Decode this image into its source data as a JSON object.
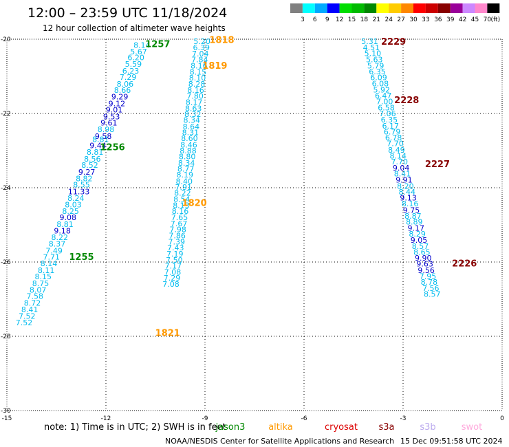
{
  "header": {
    "title": "12:00 – 23:59 UTC 11/18/2024",
    "subtitle": "12 hour collection of altimeter wave heights"
  },
  "colorbar": {
    "labels": [
      "3",
      "6",
      "9",
      "12",
      "15",
      "18",
      "21",
      "24",
      "27",
      "30",
      "33",
      "36",
      "39",
      "42",
      "45",
      "70",
      "(ft)"
    ],
    "colors": [
      "#808080",
      "#00ffff",
      "#00aaff",
      "#0000ff",
      "#00dd00",
      "#00bb00",
      "#008800",
      "#ffff00",
      "#ffcc00",
      "#ff8800",
      "#ff0000",
      "#cc0000",
      "#880000",
      "#990099",
      "#cc88ff",
      "#ff88cc",
      "#000000"
    ]
  },
  "footer": {
    "note": "note: 1) Time is in UTC; 2) SWH is in feet",
    "satellites": [
      {
        "name": "jason3",
        "color": "#008800"
      },
      {
        "name": "altika",
        "color": "#ff9900"
      },
      {
        "name": "cryosat",
        "color": "#dd0000"
      },
      {
        "name": "s3a",
        "color": "#880000"
      },
      {
        "name": "s3b",
        "color": "#bbaaee"
      },
      {
        "name": "swot",
        "color": "#ffaadd"
      }
    ],
    "credit": "NOAA/NESDIS Center for Satellite Applications and Research",
    "timestamp": "15 Dec 09:51:58 UTC 2024"
  },
  "chart_data": {
    "type": "scatter",
    "title": "12:00 – 23:59 UTC 11/18/2024",
    "subtitle": "12 hour collection of altimeter wave heights",
    "xlabel": "",
    "ylabel": "",
    "xlim": [
      -15,
      0
    ],
    "ylim": [
      -30,
      -20
    ],
    "xticks": [
      -15,
      -12,
      -9,
      -6,
      -3,
      0
    ],
    "yticks": [
      -20,
      -22,
      -24,
      -26,
      -28,
      -30
    ],
    "xtick_labels": [
      "-15",
      "-12",
      "-9",
      "-6",
      "-3",
      "0"
    ],
    "ytick_labels": [
      "-20",
      "-22",
      "-24",
      "-26",
      "-28",
      "-30"
    ],
    "grid": true,
    "value_colors": {
      "0-9": "#00bbee",
      "9-12": "#0000cc",
      "12-15": "#00bb00"
    },
    "tracks": [
      {
        "name": "jason3",
        "color": "#008800",
        "points": [
          {
            "lon": -10.91,
            "lat": -20.16,
            "v": 8.14
          },
          {
            "lon": -11.01,
            "lat": -20.33,
            "v": 5.67
          },
          {
            "lon": -11.09,
            "lat": -20.49,
            "v": 6.2
          },
          {
            "lon": -11.17,
            "lat": -20.67,
            "v": 5.59
          },
          {
            "lon": -11.25,
            "lat": -20.85,
            "v": 6.23
          },
          {
            "lon": -11.33,
            "lat": -21.02,
            "v": 7.29
          },
          {
            "lon": -11.42,
            "lat": -21.2,
            "v": 8.06
          },
          {
            "lon": -11.5,
            "lat": -21.37,
            "v": 8.66
          },
          {
            "lon": -11.58,
            "lat": -21.55,
            "v": 9.29
          },
          {
            "lon": -11.67,
            "lat": -21.73,
            "v": 9.12
          },
          {
            "lon": -11.75,
            "lat": -21.9,
            "v": 9.01
          },
          {
            "lon": -11.83,
            "lat": -22.08,
            "v": 9.53
          },
          {
            "lon": -11.91,
            "lat": -22.25,
            "v": 9.61
          },
          {
            "lon": -12.0,
            "lat": -22.43,
            "v": 8.98
          },
          {
            "lon": -12.08,
            "lat": -22.61,
            "v": 9.58
          },
          {
            "lon": -12.16,
            "lat": -22.69,
            "v": 8.81
          },
          {
            "lon": -12.24,
            "lat": -22.86,
            "v": 9.44
          },
          {
            "lon": -12.33,
            "lat": -23.04,
            "v": 8.81
          },
          {
            "lon": -12.41,
            "lat": -23.22,
            "v": 8.56
          },
          {
            "lon": -12.49,
            "lat": -23.39,
            "v": 8.52
          },
          {
            "lon": -12.58,
            "lat": -23.57,
            "v": 9.27
          },
          {
            "lon": -12.66,
            "lat": -23.75,
            "v": 8.82
          },
          {
            "lon": -12.74,
            "lat": -23.92,
            "v": 8.55
          },
          {
            "lon": -12.82,
            "lat": -24.1,
            "v": 11.33
          },
          {
            "lon": -12.91,
            "lat": -24.28,
            "v": 8.24
          },
          {
            "lon": -12.99,
            "lat": -24.45,
            "v": 8.03
          },
          {
            "lon": -13.07,
            "lat": -24.63,
            "v": 8.25
          },
          {
            "lon": -13.15,
            "lat": -24.8,
            "v": 9.08
          },
          {
            "lon": -13.24,
            "lat": -24.98,
            "v": 8.81
          },
          {
            "lon": -13.32,
            "lat": -25.16,
            "v": 9.18
          },
          {
            "lon": -13.4,
            "lat": -25.33,
            "v": 8.22
          },
          {
            "lon": -13.48,
            "lat": -25.51,
            "v": 8.37
          },
          {
            "lon": -13.57,
            "lat": -25.69,
            "v": 7.49
          },
          {
            "lon": -13.65,
            "lat": -25.86,
            "v": 7.71
          },
          {
            "lon": -13.73,
            "lat": -26.04,
            "v": 8.14
          },
          {
            "lon": -13.81,
            "lat": -26.22,
            "v": 8.11
          },
          {
            "lon": -13.9,
            "lat": -26.39,
            "v": 8.15
          },
          {
            "lon": -13.98,
            "lat": -26.57,
            "v": 8.75
          },
          {
            "lon": -14.06,
            "lat": -26.75,
            "v": 8.07
          },
          {
            "lon": -14.15,
            "lat": -26.92,
            "v": 7.58
          },
          {
            "lon": -14.23,
            "lat": -27.1,
            "v": 8.72
          },
          {
            "lon": -14.31,
            "lat": -27.28,
            "v": 8.41
          },
          {
            "lon": -14.39,
            "lat": -27.45,
            "v": 7.52
          },
          {
            "lon": -14.48,
            "lat": -27.63,
            "v": 7.52
          }
        ],
        "passes": [
          {
            "label": "1257",
            "lon": -10.43,
            "lat": -20.12
          },
          {
            "label": "1256",
            "lon": -11.8,
            "lat": -22.9
          },
          {
            "label": "1255",
            "lon": -12.74,
            "lat": -25.85
          }
        ]
      },
      {
        "name": "altika",
        "color": "#ff9900",
        "points": [
          {
            "lon": -9.09,
            "lat": -20.06,
            "v": 5.2
          },
          {
            "lon": -9.11,
            "lat": -20.22,
            "v": 6.39
          },
          {
            "lon": -9.14,
            "lat": -20.39,
            "v": 7.04
          },
          {
            "lon": -9.16,
            "lat": -20.55,
            "v": 7.84
          },
          {
            "lon": -9.18,
            "lat": -20.71,
            "v": 8.16
          },
          {
            "lon": -9.21,
            "lat": -20.88,
            "v": 8.15
          },
          {
            "lon": -9.23,
            "lat": -21.04,
            "v": 8.1
          },
          {
            "lon": -9.25,
            "lat": -21.2,
            "v": 8.28
          },
          {
            "lon": -9.28,
            "lat": -21.37,
            "v": 8.16
          },
          {
            "lon": -9.3,
            "lat": -21.53,
            "v": 7.8
          },
          {
            "lon": -9.33,
            "lat": -21.69,
            "v": 8.17
          },
          {
            "lon": -9.35,
            "lat": -21.86,
            "v": 8.63
          },
          {
            "lon": -9.37,
            "lat": -22.02,
            "v": 8.32
          },
          {
            "lon": -9.4,
            "lat": -22.18,
            "v": 8.34
          },
          {
            "lon": -9.42,
            "lat": -22.35,
            "v": 8.64
          },
          {
            "lon": -9.44,
            "lat": -22.51,
            "v": 8.31
          },
          {
            "lon": -9.47,
            "lat": -22.67,
            "v": 8.6
          },
          {
            "lon": -9.49,
            "lat": -22.84,
            "v": 8.46
          },
          {
            "lon": -9.51,
            "lat": -23.0,
            "v": 8.88
          },
          {
            "lon": -9.54,
            "lat": -23.16,
            "v": 8.8
          },
          {
            "lon": -9.56,
            "lat": -23.33,
            "v": 8.34
          },
          {
            "lon": -9.58,
            "lat": -23.49,
            "v": 8.77
          },
          {
            "lon": -9.61,
            "lat": -23.65,
            "v": 8.19
          },
          {
            "lon": -9.63,
            "lat": -23.82,
            "v": 8.4
          },
          {
            "lon": -9.65,
            "lat": -23.98,
            "v": 7.91
          },
          {
            "lon": -9.68,
            "lat": -24.14,
            "v": 8.22
          },
          {
            "lon": -9.7,
            "lat": -24.31,
            "v": 8.54
          },
          {
            "lon": -9.72,
            "lat": -24.47,
            "v": 8.13
          },
          {
            "lon": -9.75,
            "lat": -24.63,
            "v": 8.16
          },
          {
            "lon": -9.77,
            "lat": -24.8,
            "v": 7.65
          },
          {
            "lon": -9.79,
            "lat": -24.96,
            "v": 7.67
          },
          {
            "lon": -9.82,
            "lat": -25.12,
            "v": 7.98
          },
          {
            "lon": -9.84,
            "lat": -25.29,
            "v": 7.86
          },
          {
            "lon": -9.86,
            "lat": -25.45,
            "v": 7.39
          },
          {
            "lon": -9.89,
            "lat": -25.61,
            "v": 7.43
          },
          {
            "lon": -9.91,
            "lat": -25.78,
            "v": 7.19
          },
          {
            "lon": -9.93,
            "lat": -25.94,
            "v": 7.5
          },
          {
            "lon": -9.96,
            "lat": -26.1,
            "v": 7.17
          },
          {
            "lon": -9.98,
            "lat": -26.27,
            "v": 7.08
          },
          {
            "lon": -10.0,
            "lat": -26.43,
            "v": 7.29
          },
          {
            "lon": -10.03,
            "lat": -26.59,
            "v": 7.08
          }
        ],
        "passes": [
          {
            "label": "1818",
            "lon": -8.49,
            "lat": -20.01
          },
          {
            "label": "1819",
            "lon": -8.7,
            "lat": -20.7
          },
          {
            "label": "1820",
            "lon": -9.32,
            "lat": -24.4
          },
          {
            "label": "1821",
            "lon": -10.13,
            "lat": -27.9
          }
        ]
      },
      {
        "name": "s3a",
        "color": "#880000",
        "points": [
          {
            "lon": -4.01,
            "lat": -20.06,
            "v": 5.31
          },
          {
            "lon": -3.96,
            "lat": -20.22,
            "v": 4.51
          },
          {
            "lon": -3.92,
            "lat": -20.38,
            "v": 5.1
          },
          {
            "lon": -3.87,
            "lat": -20.55,
            "v": 5.63
          },
          {
            "lon": -3.83,
            "lat": -20.71,
            "v": 5.79
          },
          {
            "lon": -3.78,
            "lat": -20.87,
            "v": 6.35
          },
          {
            "lon": -3.74,
            "lat": -21.03,
            "v": 6.09
          },
          {
            "lon": -3.69,
            "lat": -21.19,
            "v": 6.08
          },
          {
            "lon": -3.65,
            "lat": -21.36,
            "v": 5.92
          },
          {
            "lon": -3.6,
            "lat": -21.52,
            "v": 6.47
          },
          {
            "lon": -3.56,
            "lat": -21.68,
            "v": 7.0
          },
          {
            "lon": -3.51,
            "lat": -21.84,
            "v": 6.58
          },
          {
            "lon": -3.47,
            "lat": -22.0,
            "v": 7.06
          },
          {
            "lon": -3.42,
            "lat": -22.17,
            "v": 6.35
          },
          {
            "lon": -3.38,
            "lat": -22.33,
            "v": 6.17
          },
          {
            "lon": -3.33,
            "lat": -22.49,
            "v": 6.79
          },
          {
            "lon": -3.29,
            "lat": -22.65,
            "v": 6.78
          },
          {
            "lon": -3.24,
            "lat": -22.81,
            "v": 7.7
          },
          {
            "lon": -3.2,
            "lat": -22.98,
            "v": 8.49
          },
          {
            "lon": -3.15,
            "lat": -23.14,
            "v": 8.14
          },
          {
            "lon": -3.11,
            "lat": -23.3,
            "v": 7.7
          },
          {
            "lon": -3.06,
            "lat": -23.46,
            "v": 9.04
          },
          {
            "lon": -3.02,
            "lat": -23.62,
            "v": 8.41
          },
          {
            "lon": -2.97,
            "lat": -23.79,
            "v": 9.91
          },
          {
            "lon": -2.93,
            "lat": -23.95,
            "v": 8.2
          },
          {
            "lon": -2.88,
            "lat": -24.11,
            "v": 8.44
          },
          {
            "lon": -2.84,
            "lat": -24.27,
            "v": 9.13
          },
          {
            "lon": -2.79,
            "lat": -24.43,
            "v": 8.16
          },
          {
            "lon": -2.75,
            "lat": -24.6,
            "v": 9.75
          },
          {
            "lon": -2.7,
            "lat": -24.76,
            "v": 8.87
          },
          {
            "lon": -2.66,
            "lat": -24.92,
            "v": 8.89
          },
          {
            "lon": -2.61,
            "lat": -25.08,
            "v": 9.17
          },
          {
            "lon": -2.57,
            "lat": -25.24,
            "v": 8.29
          },
          {
            "lon": -2.52,
            "lat": -25.41,
            "v": 9.05
          },
          {
            "lon": -2.48,
            "lat": -25.57,
            "v": 8.57
          },
          {
            "lon": -2.43,
            "lat": -25.73,
            "v": 8.65
          },
          {
            "lon": -2.39,
            "lat": -25.89,
            "v": 9.9
          },
          {
            "lon": -2.34,
            "lat": -26.05,
            "v": 9.63
          },
          {
            "lon": -2.3,
            "lat": -26.22,
            "v": 9.56
          },
          {
            "lon": -2.25,
            "lat": -26.38,
            "v": 7.95
          },
          {
            "lon": -2.21,
            "lat": -26.54,
            "v": 8.78
          },
          {
            "lon": -2.16,
            "lat": -26.7,
            "v": 7.56
          },
          {
            "lon": -2.12,
            "lat": -26.86,
            "v": 8.57
          }
        ],
        "passes": [
          {
            "label": "2229",
            "lon": -3.29,
            "lat": -20.06
          },
          {
            "label": "2228",
            "lon": -2.89,
            "lat": -21.63
          },
          {
            "label": "2227",
            "lon": -1.96,
            "lat": -23.35
          },
          {
            "label": "2226",
            "lon": -1.14,
            "lat": -26.03
          }
        ]
      }
    ]
  }
}
